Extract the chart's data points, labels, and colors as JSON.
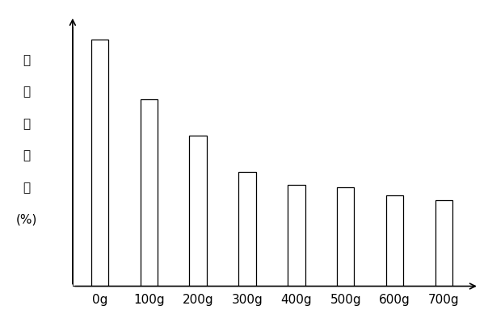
{
  "categories": [
    "0g",
    "100g",
    "200g",
    "300g",
    "400g",
    "500g",
    "600g",
    "700g"
  ],
  "values": [
    95,
    72,
    58,
    44,
    39,
    38,
    35,
    33
  ],
  "bar_color": "#ffffff",
  "bar_edgecolor": "#000000",
  "ylabel_chars": [
    "重",
    "金",
    "属",
    "含",
    "量",
    "(%)"
  ],
  "ylabel_fontsize": 11,
  "xlabel_fontsize": 11,
  "bar_width": 0.35,
  "ylim": [
    0,
    100
  ],
  "background_color": "#ffffff",
  "linewidth": 0.9,
  "figsize": [
    6.04,
    4.15
  ],
  "dpi": 100
}
